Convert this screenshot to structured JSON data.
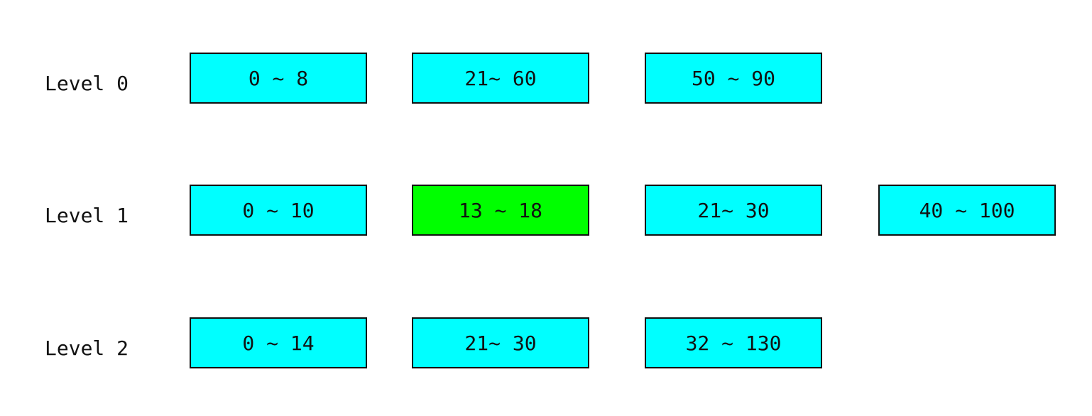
{
  "levels": [
    {
      "label": "Level 0",
      "ranges": [
        {
          "text": "0 ~ 8",
          "color": "#00ffff"
        },
        {
          "text": "21~ 60",
          "color": "#00ffff"
        },
        {
          "text": "50 ~ 90",
          "color": "#00ffff"
        }
      ]
    },
    {
      "label": "Level 1",
      "ranges": [
        {
          "text": "0 ~ 10",
          "color": "#00ffff"
        },
        {
          "text": "13 ~ 18",
          "color": "#00ff00"
        },
        {
          "text": "21~ 30",
          "color": "#00ffff"
        },
        {
          "text": "40 ~ 100",
          "color": "#00ffff"
        }
      ]
    },
    {
      "label": "Level 2",
      "ranges": [
        {
          "text": "0 ~ 14",
          "color": "#00ffff"
        },
        {
          "text": "21~ 30",
          "color": "#00ffff"
        },
        {
          "text": "32 ~ 130",
          "color": "#00ffff"
        }
      ]
    }
  ]
}
